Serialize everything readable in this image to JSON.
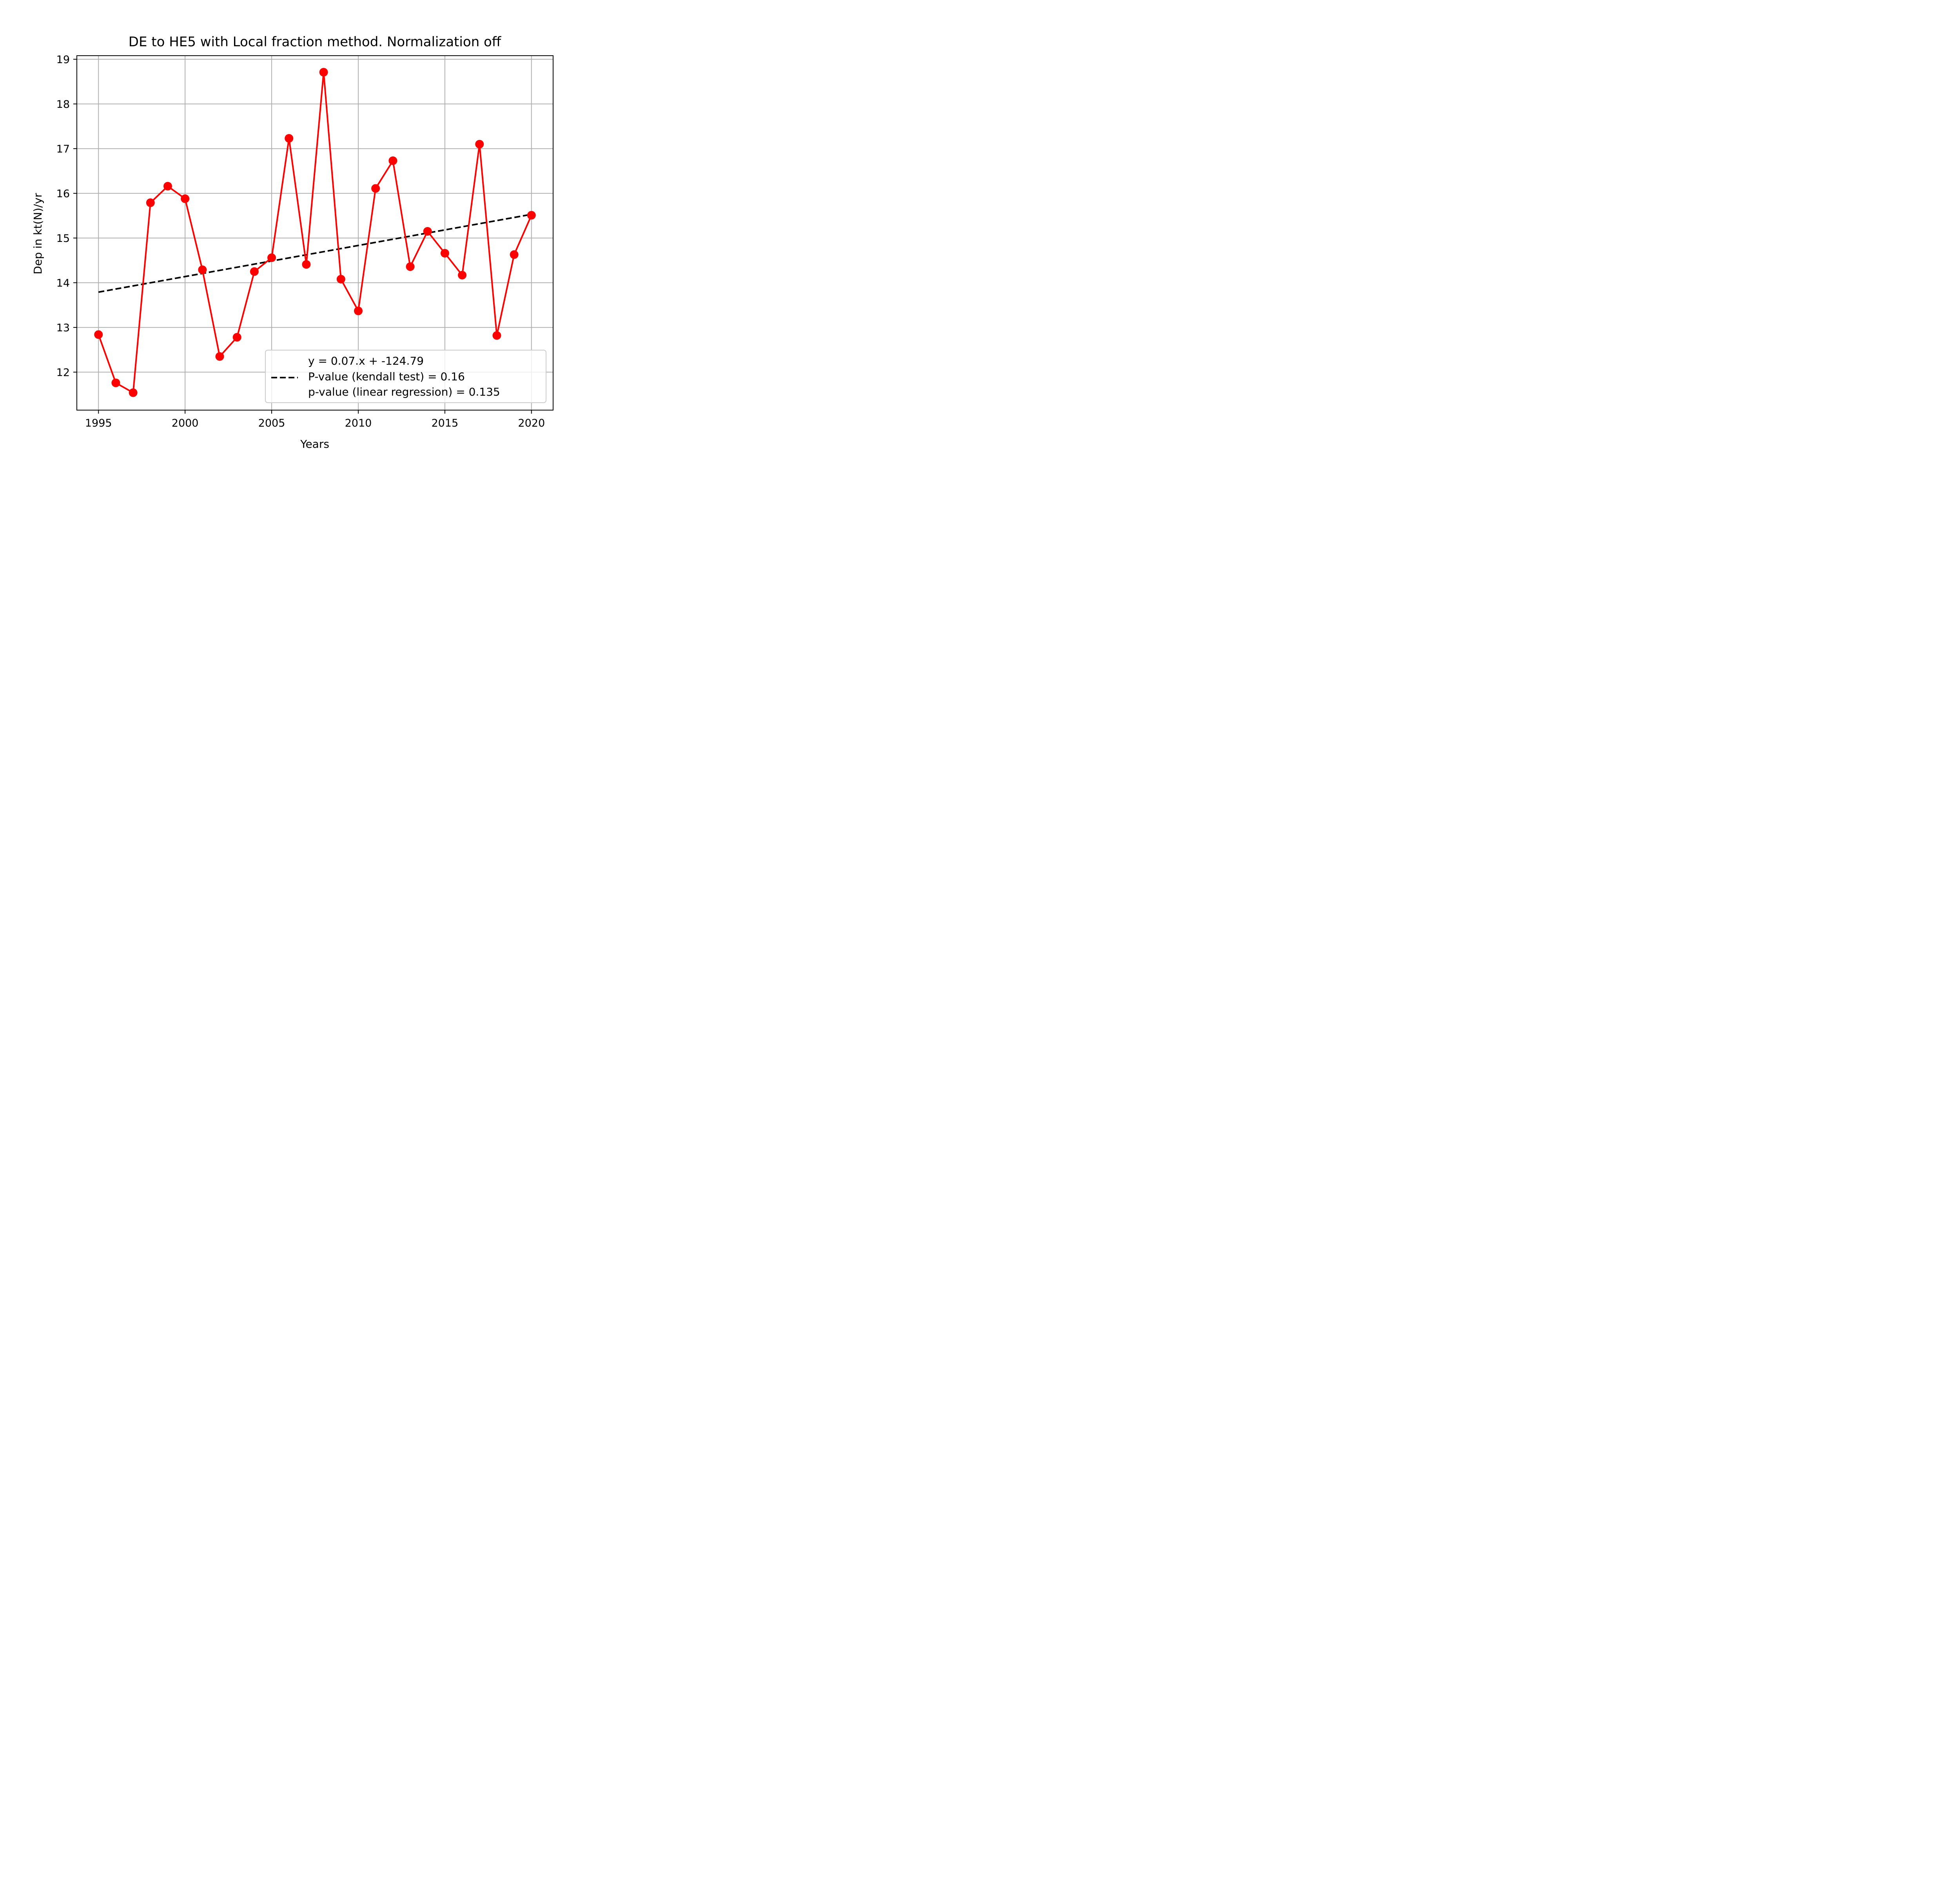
{
  "chart_data": {
    "type": "line",
    "title": "DE to HE5 with Local fraction method. Normalization off",
    "xlabel": "Years",
    "ylabel": "Dep in kt(N)/yr",
    "xlim": [
      1993.75,
      2021.25
    ],
    "ylim": [
      11.15,
      19.08
    ],
    "x_ticks": [
      1995,
      2000,
      2005,
      2010,
      2015,
      2020
    ],
    "y_ticks": [
      12,
      13,
      14,
      15,
      16,
      17,
      18,
      19
    ],
    "grid": true,
    "legend_position": "bottom-right",
    "series": [
      {
        "color": "#ff0000",
        "marker": "circle",
        "x": [
          1995,
          1996,
          1997,
          1998,
          1999,
          2000,
          2001,
          2002,
          2003,
          2004,
          2005,
          2006,
          2007,
          2008,
          2009,
          2010,
          2011,
          2012,
          2013,
          2014,
          2015,
          2016,
          2017,
          2018,
          2019,
          2020
        ],
        "y": [
          12.84,
          11.76,
          11.54,
          15.79,
          16.16,
          15.88,
          14.29,
          12.35,
          12.78,
          14.25,
          14.56,
          17.23,
          14.41,
          18.71,
          14.08,
          13.37,
          16.11,
          16.73,
          14.36,
          15.15,
          14.66,
          14.17,
          17.1,
          12.82,
          14.63,
          15.51
        ]
      },
      {
        "name": "y = 0.07.x + -124.79\nP-value (kendall test) = 0.16\np-value (linear regression) = 0.135",
        "color": "#000000",
        "style": "dashed",
        "x": [
          1995,
          2020
        ],
        "y": [
          13.79,
          15.53
        ]
      }
    ],
    "legend": {
      "lines": [
        "y = 0.07.x + -124.79",
        "P-value (kendall test) = 0.16",
        "p-value (linear regression) = 0.135"
      ]
    }
  }
}
